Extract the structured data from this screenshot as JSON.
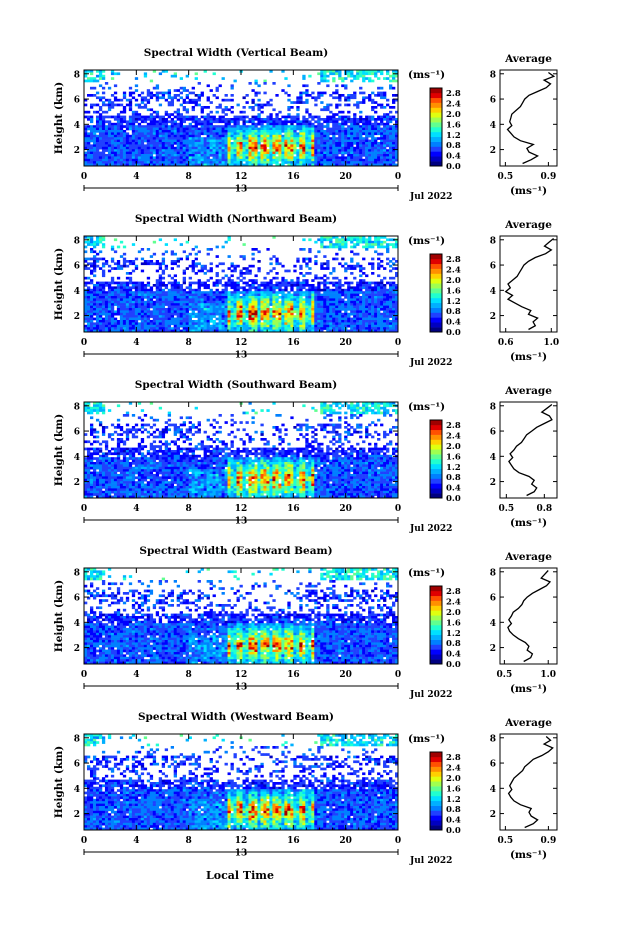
{
  "figure": {
    "xlabel": "Local Time",
    "date_label": "Jul 2022",
    "colorbar_unit": "(ms⁻¹)",
    "profile_title": "Average",
    "profile_xlabel": "(ms⁻¹)",
    "colors": {
      "jet": [
        "#000080",
        "#0000c0",
        "#0000ff",
        "#2040ff",
        "#0080ff",
        "#00b0ff",
        "#00e0ff",
        "#20ffd0",
        "#60ff90",
        "#a0ff50",
        "#e0ff10",
        "#ffd000",
        "#ff9000",
        "#ff5000",
        "#e00000",
        "#a00000"
      ],
      "missing": "#ffffff",
      "axis": "#000000"
    }
  },
  "chart_data": [
    {
      "type": "heatmap",
      "title": "Spectral Width (Vertical Beam)",
      "ylabel": "Height (km)",
      "x_ticks": [
        "0",
        "4",
        "8",
        "12",
        "16",
        "20",
        "0"
      ],
      "x_ticks_values": [
        0,
        4,
        8,
        12,
        16,
        20,
        24
      ],
      "xlim": [
        0,
        24
      ],
      "date_tick": "13",
      "y_ticks": [
        "2",
        "4",
        "6",
        "8"
      ],
      "y_ticks_values": [
        2,
        4,
        6,
        8
      ],
      "ylim": [
        0.7,
        8.3
      ],
      "colorbar_ticks": [
        "2.8",
        "2.4",
        "2.0",
        "1.6",
        "1.2",
        "0.8",
        "0.4",
        "0.0"
      ],
      "colorbar_range": [
        0.0,
        3.0
      ],
      "profile": {
        "x_ticks": [
          "0.5",
          "0.9"
        ],
        "xlim": [
          0.45,
          0.98
        ],
        "y_ticks": [
          "2",
          "4",
          "6",
          "8"
        ],
        "height_km": [
          0.9,
          1.2,
          1.5,
          1.8,
          2.1,
          2.4,
          2.7,
          3.0,
          3.3,
          3.6,
          3.9,
          4.2,
          4.5,
          4.8,
          5.1,
          5.4,
          5.7,
          6.0,
          6.3,
          6.6,
          6.9,
          7.2,
          7.5,
          7.8,
          8.1
        ],
        "width": [
          0.66,
          0.74,
          0.8,
          0.72,
          0.7,
          0.76,
          0.64,
          0.58,
          0.55,
          0.52,
          0.56,
          0.54,
          0.55,
          0.56,
          0.6,
          0.64,
          0.66,
          0.68,
          0.72,
          0.8,
          0.88,
          0.92,
          0.86,
          0.95,
          0.9
        ]
      }
    },
    {
      "type": "heatmap",
      "title": "Spectral Width (Northward Beam)",
      "ylabel": "Height (km)",
      "x_ticks": [
        "0",
        "4",
        "8",
        "12",
        "16",
        "20",
        "0"
      ],
      "x_ticks_values": [
        0,
        4,
        8,
        12,
        16,
        20,
        24
      ],
      "xlim": [
        0,
        24
      ],
      "date_tick": "13",
      "y_ticks": [
        "2",
        "4",
        "6",
        "8"
      ],
      "y_ticks_values": [
        2,
        4,
        6,
        8
      ],
      "ylim": [
        0.7,
        8.3
      ],
      "colorbar_ticks": [
        "2.8",
        "2.4",
        "2.0",
        "1.6",
        "1.2",
        "0.8",
        "0.4",
        "0.0"
      ],
      "colorbar_range": [
        0.0,
        3.0
      ],
      "profile": {
        "x_ticks": [
          "0.6",
          "1.0"
        ],
        "xlim": [
          0.55,
          1.05
        ],
        "y_ticks": [
          "2",
          "4",
          "6",
          "8"
        ],
        "height_km": [
          0.9,
          1.2,
          1.5,
          1.8,
          2.1,
          2.4,
          2.7,
          3.0,
          3.3,
          3.6,
          3.9,
          4.2,
          4.5,
          4.8,
          5.1,
          5.4,
          5.7,
          6.0,
          6.3,
          6.6,
          6.9,
          7.2,
          7.5,
          7.8,
          8.1
        ],
        "width": [
          0.8,
          0.86,
          0.84,
          0.88,
          0.8,
          0.82,
          0.74,
          0.68,
          0.62,
          0.66,
          0.6,
          0.64,
          0.62,
          0.66,
          0.7,
          0.72,
          0.74,
          0.76,
          0.8,
          0.86,
          0.95,
          1.0,
          0.94,
          0.98,
          1.02
        ]
      }
    },
    {
      "type": "heatmap",
      "title": "Spectral Width (Southward Beam)",
      "ylabel": "Height (km)",
      "x_ticks": [
        "0",
        "4",
        "8",
        "12",
        "16",
        "20",
        "0"
      ],
      "x_ticks_values": [
        0,
        4,
        8,
        12,
        16,
        20,
        24
      ],
      "xlim": [
        0,
        24
      ],
      "date_tick": "13",
      "y_ticks": [
        "2",
        "4",
        "6",
        "8"
      ],
      "y_ticks_values": [
        2,
        4,
        6,
        8
      ],
      "ylim": [
        0.7,
        8.3
      ],
      "colorbar_ticks": [
        "2.8",
        "2.4",
        "2.0",
        "1.6",
        "1.2",
        "0.8",
        "0.4",
        "0.0"
      ],
      "colorbar_range": [
        0.0,
        3.0
      ],
      "profile": {
        "x_ticks": [
          "0.5",
          "0.8"
        ],
        "xlim": [
          0.45,
          0.9
        ],
        "y_ticks": [
          "2",
          "4",
          "6",
          "8"
        ],
        "height_km": [
          0.9,
          1.2,
          1.5,
          1.8,
          2.1,
          2.4,
          2.7,
          3.0,
          3.3,
          3.6,
          3.9,
          4.2,
          4.5,
          4.8,
          5.1,
          5.4,
          5.7,
          6.0,
          6.3,
          6.6,
          6.9,
          7.2,
          7.5,
          7.8,
          8.1
        ],
        "width": [
          0.66,
          0.72,
          0.74,
          0.7,
          0.72,
          0.68,
          0.6,
          0.56,
          0.54,
          0.52,
          0.55,
          0.53,
          0.56,
          0.58,
          0.62,
          0.64,
          0.66,
          0.7,
          0.74,
          0.8,
          0.86,
          0.84,
          0.78,
          0.82,
          0.86
        ]
      }
    },
    {
      "type": "heatmap",
      "title": "Spectral Width (Eastward Beam)",
      "ylabel": "Height (km)",
      "x_ticks": [
        "0",
        "4",
        "8",
        "12",
        "16",
        "20",
        "0"
      ],
      "x_ticks_values": [
        0,
        4,
        8,
        12,
        16,
        20,
        24
      ],
      "xlim": [
        0,
        24
      ],
      "date_tick": "13",
      "y_ticks": [
        "2",
        "4",
        "6",
        "8"
      ],
      "y_ticks_values": [
        2,
        4,
        6,
        8
      ],
      "ylim": [
        0.7,
        8.3
      ],
      "colorbar_ticks": [
        "2.8",
        "2.4",
        "2.0",
        "1.6",
        "1.2",
        "0.8",
        "0.4",
        "0.0"
      ],
      "colorbar_range": [
        0.0,
        3.0
      ],
      "profile": {
        "x_ticks": [
          "0.5",
          "1.0"
        ],
        "xlim": [
          0.45,
          1.1
        ],
        "y_ticks": [
          "2",
          "4",
          "6",
          "8"
        ],
        "height_km": [
          0.9,
          1.2,
          1.5,
          1.8,
          2.1,
          2.4,
          2.7,
          3.0,
          3.3,
          3.6,
          3.9,
          4.2,
          4.5,
          4.8,
          5.1,
          5.4,
          5.7,
          6.0,
          6.3,
          6.6,
          6.9,
          7.2,
          7.5,
          7.8,
          8.1
        ],
        "width": [
          0.72,
          0.8,
          0.82,
          0.76,
          0.78,
          0.74,
          0.66,
          0.6,
          0.56,
          0.54,
          0.58,
          0.55,
          0.58,
          0.6,
          0.66,
          0.7,
          0.72,
          0.76,
          0.82,
          0.9,
          0.98,
          1.02,
          0.92,
          0.96,
          1.0
        ]
      }
    },
    {
      "type": "heatmap",
      "title": "Spectral Width (Westward Beam)",
      "ylabel": "Height (km)",
      "x_ticks": [
        "0",
        "4",
        "8",
        "12",
        "16",
        "20",
        "0"
      ],
      "x_ticks_values": [
        0,
        4,
        8,
        12,
        16,
        20,
        24
      ],
      "xlim": [
        0,
        24
      ],
      "date_tick": "13",
      "y_ticks": [
        "2",
        "4",
        "6",
        "8"
      ],
      "y_ticks_values": [
        2,
        4,
        6,
        8
      ],
      "ylim": [
        0.7,
        8.3
      ],
      "colorbar_ticks": [
        "2.8",
        "2.4",
        "2.0",
        "1.6",
        "1.2",
        "0.8",
        "0.4",
        "0.0"
      ],
      "colorbar_range": [
        0.0,
        3.0
      ],
      "profile": {
        "x_ticks": [
          "0.5",
          "0.9"
        ],
        "xlim": [
          0.45,
          0.98
        ],
        "y_ticks": [
          "2",
          "4",
          "6",
          "8"
        ],
        "height_km": [
          0.9,
          1.2,
          1.5,
          1.8,
          2.1,
          2.4,
          2.7,
          3.0,
          3.3,
          3.6,
          3.9,
          4.2,
          4.5,
          4.8,
          5.1,
          5.4,
          5.7,
          6.0,
          6.3,
          6.6,
          6.9,
          7.2,
          7.5,
          7.8,
          8.1
        ],
        "width": [
          0.68,
          0.76,
          0.8,
          0.74,
          0.72,
          0.74,
          0.64,
          0.58,
          0.55,
          0.53,
          0.56,
          0.54,
          0.56,
          0.58,
          0.62,
          0.66,
          0.68,
          0.72,
          0.76,
          0.84,
          0.9,
          0.94,
          0.86,
          0.92,
          0.88
        ]
      }
    }
  ]
}
